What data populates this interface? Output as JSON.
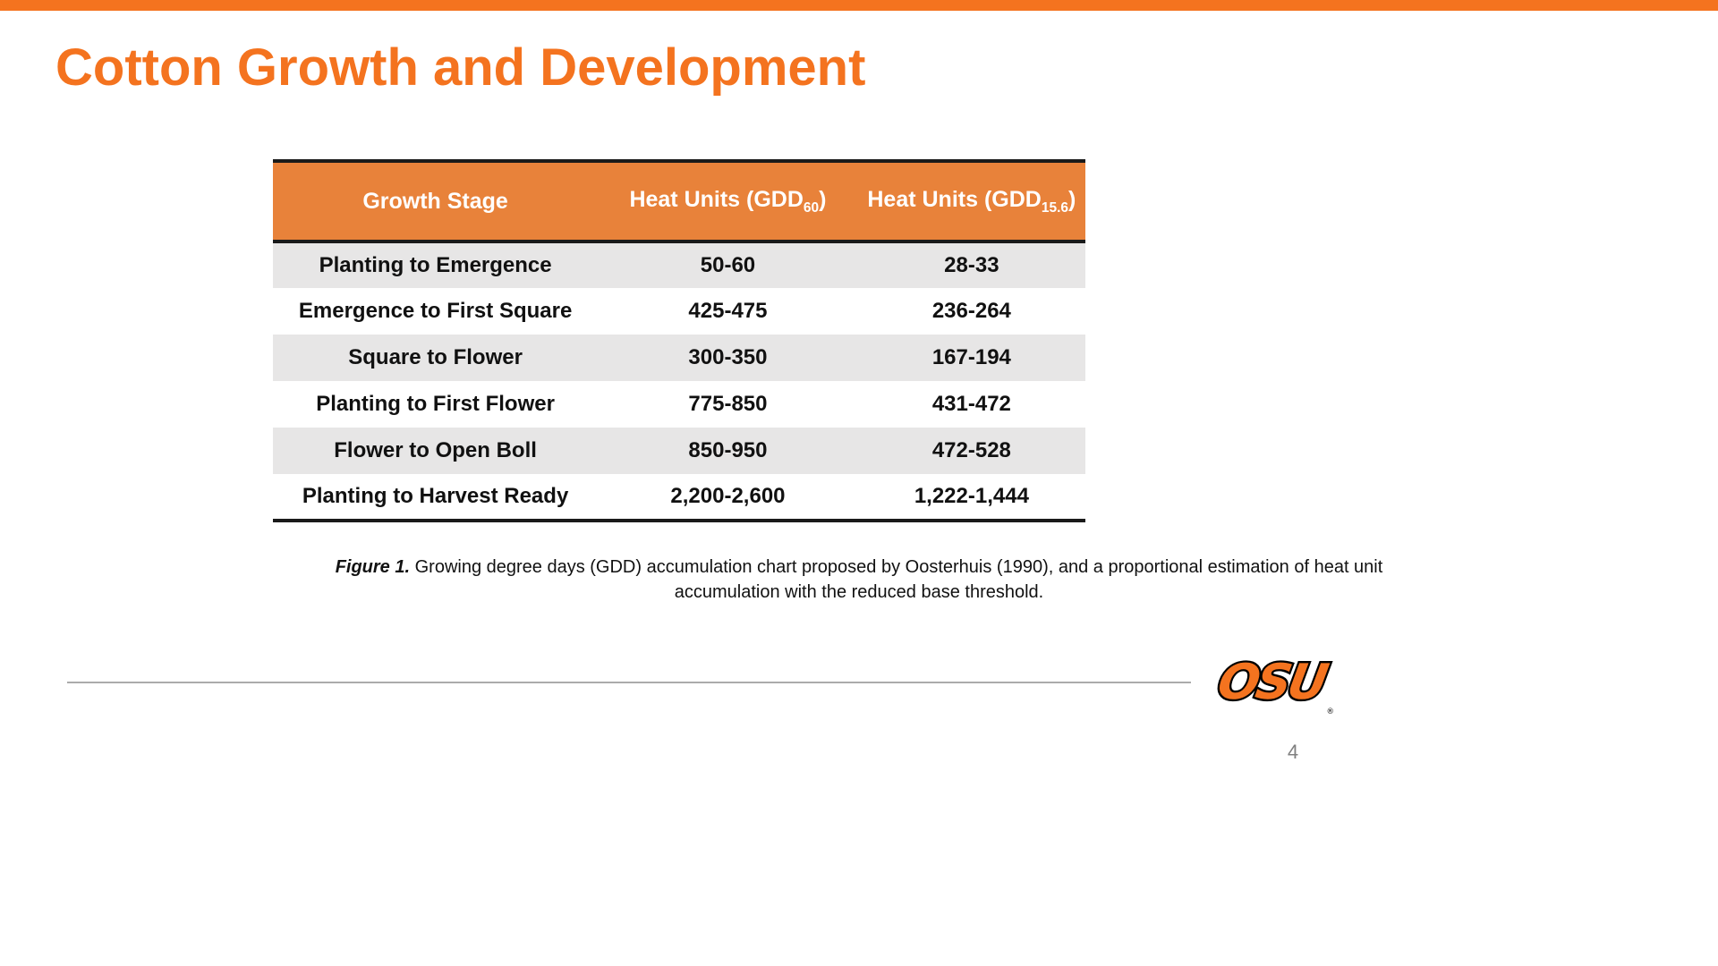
{
  "slide": {
    "title": "Cotton Growth and Development",
    "page_number": "4"
  },
  "colors": {
    "accent_orange": "#F4731F",
    "table_header_fill": "#E8823A",
    "row_alt_gray": "#E7E6E6",
    "header_text": "#FFFFFF",
    "body_text": "#111111",
    "footer_line_gray": "#ABABAB",
    "page_number_gray": "#808080"
  },
  "table": {
    "headers": [
      {
        "text": "Growth Stage"
      },
      {
        "prefix": "Heat Units (GDD",
        "sub": "60",
        "suffix": ")"
      },
      {
        "prefix": "Heat Units (GDD",
        "sub": "15.6",
        "suffix": ")"
      }
    ],
    "rows": [
      {
        "stage": "Planting to Emergence",
        "gdd60": "50-60",
        "gdd156": "28-33"
      },
      {
        "stage": "Emergence to First Square",
        "gdd60": "425-475",
        "gdd156": "236-264"
      },
      {
        "stage": "Square to Flower",
        "gdd60": "300-350",
        "gdd156": "167-194"
      },
      {
        "stage": "Planting to First Flower",
        "gdd60": "775-850",
        "gdd156": "431-472"
      },
      {
        "stage": "Flower to Open Boll",
        "gdd60": "850-950",
        "gdd156": "472-528"
      },
      {
        "stage": "Planting to Harvest Ready",
        "gdd60": "2,200-2,600",
        "gdd156": "1,222-1,444"
      }
    ]
  },
  "caption": {
    "label": "Figure 1.",
    "text": "Growing degree days (GDD) accumulation chart proposed by Oosterhuis (1990), and a proportional estimation of heat unit accumulation with the reduced base threshold."
  },
  "logo": {
    "text": "OSU",
    "trademark": "®"
  }
}
